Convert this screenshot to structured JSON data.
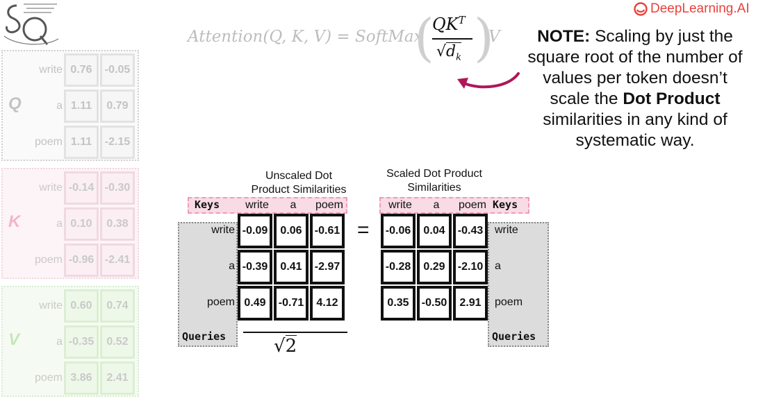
{
  "brand": {
    "name": "DeepLearning.AI",
    "color": "#e8413a"
  },
  "logo": {
    "icon": "sq-logo-icon"
  },
  "formula": {
    "prefix": "Attention(Q, K, V) = SoftMax",
    "numerator": "QK",
    "numerator_sup": "T",
    "denominator": "d",
    "denominator_sub": "k",
    "suffix": "V",
    "sqrt_symbol": "√"
  },
  "note": {
    "label": "NOTE:",
    "line1": " Scaling by just the",
    "line2": "square root of the number of",
    "line3": "values per token doesn’t",
    "line4_pre": "scale the ",
    "line4_bold": "Dot Product",
    "line5": "similarities in any kind of",
    "line6": "systematic way."
  },
  "side_matrices": [
    {
      "letter": "Q",
      "rows": [
        {
          "label": "write",
          "values": [
            "0.76",
            "-0.05"
          ]
        },
        {
          "label": "a",
          "values": [
            "1.11",
            "0.79"
          ]
        },
        {
          "label": "poem",
          "values": [
            "1.11",
            "-2.15"
          ]
        }
      ]
    },
    {
      "letter": "K",
      "rows": [
        {
          "label": "write",
          "values": [
            "-0.14",
            "-0.30"
          ]
        },
        {
          "label": "a",
          "values": [
            "0.10",
            "0.38"
          ]
        },
        {
          "label": "poem",
          "values": [
            "-0.96",
            "-2.41"
          ]
        }
      ]
    },
    {
      "letter": "V",
      "rows": [
        {
          "label": "write",
          "values": [
            "0.60",
            "0.74"
          ]
        },
        {
          "label": "a",
          "values": [
            "-0.35",
            "0.52"
          ]
        },
        {
          "label": "poem",
          "values": [
            "3.86",
            "2.41"
          ]
        }
      ]
    }
  ],
  "unscaled": {
    "title_line1": "Unscaled Dot",
    "title_line2": "Product Similarities",
    "keys_label": "Keys",
    "queries_label": "Queries",
    "columns": [
      "write",
      "a",
      "poem"
    ],
    "rows": [
      {
        "label": "write",
        "values": [
          "-0.09",
          "0.06",
          "-0.61"
        ]
      },
      {
        "label": "a",
        "values": [
          "-0.39",
          "0.41",
          "-2.97"
        ]
      },
      {
        "label": "poem",
        "values": [
          "0.49",
          "-0.71",
          "4.12"
        ]
      }
    ],
    "divisor_radicand": "2"
  },
  "equals": "=",
  "scaled": {
    "title_line1": "Scaled Dot Product",
    "title_line2": "Similarities",
    "keys_label": "Keys",
    "queries_label": "Queries",
    "columns": [
      "write",
      "a",
      "poem"
    ],
    "rows": [
      {
        "label": "write",
        "values": [
          "-0.06",
          "0.04",
          "-0.43"
        ]
      },
      {
        "label": "a",
        "values": [
          "-0.28",
          "0.29",
          "-2.10"
        ]
      },
      {
        "label": "poem",
        "values": [
          "0.35",
          "-0.50",
          "2.91"
        ]
      }
    ]
  },
  "arrow": {
    "icon": "curved-arrow-icon",
    "color": "#b0165a"
  }
}
